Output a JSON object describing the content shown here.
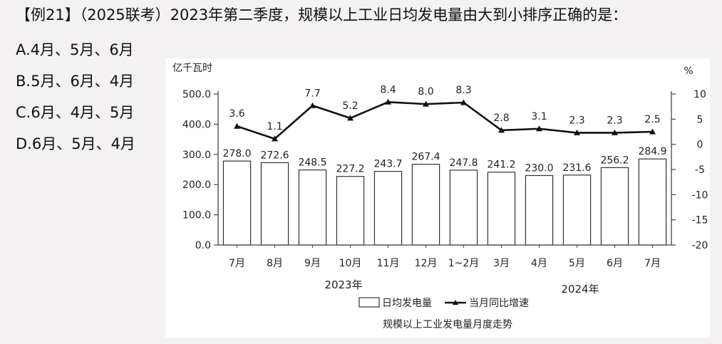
{
  "question": {
    "text": "【例21】（2025联考）2023年第二季度，规模以上工业日均发电量由大到小排序正确的是：",
    "options": [
      "A.4月、5月、6月",
      "B.5月、6月、4月",
      "C.6月、4月、5月",
      "D.6月、5月、4月"
    ]
  },
  "chart_data": {
    "type": "bar",
    "title": "规模以上工业发电量月度走势",
    "ylabel": "亿千瓦时",
    "y2label": "%",
    "ylim": [
      0,
      500
    ],
    "yticks": [
      "0.0",
      "100.0",
      "200.0",
      "300.0",
      "400.0",
      "500.0"
    ],
    "y2lim": [
      -20,
      10
    ],
    "y2ticks": [
      "10",
      "5",
      "0",
      "-5",
      "-10",
      "-15",
      "-20"
    ],
    "categories": [
      "7月",
      "8月",
      "9月",
      "10月",
      "11月",
      "12月",
      "1~2月",
      "3月",
      "4月",
      "5月",
      "6月",
      "7月"
    ],
    "year_labels": [
      "2023年",
      "2024年"
    ],
    "series": [
      {
        "name": "日均发电量",
        "type": "bar",
        "axis": "left",
        "values": [
          278.0,
          272.6,
          248.5,
          227.2,
          243.7,
          267.4,
          247.8,
          241.2,
          230.0,
          231.6,
          256.2,
          284.9
        ],
        "labels": [
          "278.0",
          "272.6",
          "248.5",
          "227.2",
          "243.7",
          "267.4",
          "247.8",
          "241.2",
          "230.0",
          "231.6",
          "256.2",
          "284.9"
        ]
      },
      {
        "name": "当月同比增速",
        "type": "line",
        "axis": "right",
        "values": [
          3.6,
          1.1,
          7.7,
          5.2,
          8.4,
          8.0,
          8.3,
          2.8,
          3.1,
          2.3,
          2.3,
          2.5
        ],
        "labels": [
          "3.6",
          "1.1",
          "7.7",
          "5.2",
          "8.4",
          "8.0",
          "8.3",
          "2.8",
          "3.1",
          "2.3",
          "2.3",
          "2.5"
        ]
      }
    ],
    "legend_position": "bottom",
    "colors": {
      "bar_fill": "#ffffff",
      "bar_stroke": "#333333",
      "line": "#111111",
      "axis": "#444444"
    }
  }
}
